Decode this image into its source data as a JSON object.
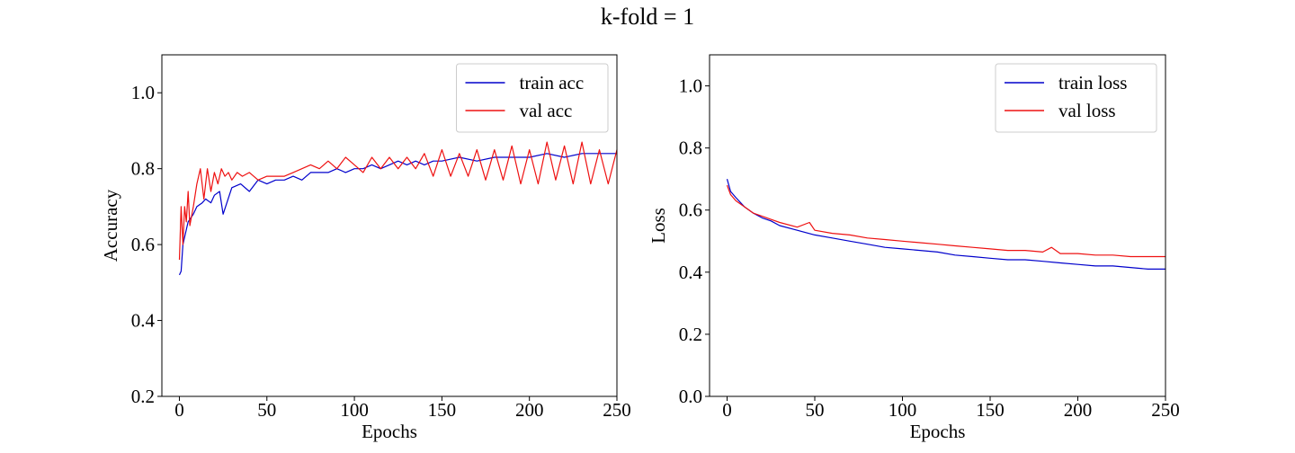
{
  "figure": {
    "suptitle": "k-fold = 1"
  },
  "chart_data": [
    {
      "type": "line",
      "title": "",
      "xlabel": "Epochs",
      "ylabel": "Accuracy",
      "xlim": [
        -10,
        250
      ],
      "ylim": [
        0.2,
        1.1
      ],
      "xticks": [
        0,
        50,
        100,
        150,
        200,
        250
      ],
      "xtick_labels": [
        "0",
        "50",
        "100",
        "150",
        "200",
        "250"
      ],
      "yticks": [
        0.2,
        0.4,
        0.6,
        0.8,
        1.0
      ],
      "ytick_labels": [
        "0.2",
        "0.4",
        "0.6",
        "0.8",
        "1.0"
      ],
      "grid": false,
      "legend_position": "top-right",
      "series": [
        {
          "name": "train acc",
          "color": "#0000cc",
          "x": [
            0,
            1,
            2,
            3,
            5,
            8,
            10,
            13,
            15,
            18,
            20,
            23,
            25,
            30,
            35,
            40,
            45,
            50,
            55,
            60,
            65,
            70,
            75,
            80,
            85,
            90,
            95,
            100,
            105,
            110,
            115,
            120,
            125,
            130,
            135,
            140,
            145,
            150,
            160,
            170,
            180,
            190,
            200,
            210,
            220,
            230,
            240,
            250
          ],
          "y": [
            0.52,
            0.53,
            0.6,
            0.62,
            0.66,
            0.68,
            0.7,
            0.71,
            0.72,
            0.71,
            0.73,
            0.74,
            0.68,
            0.75,
            0.76,
            0.74,
            0.77,
            0.76,
            0.77,
            0.77,
            0.78,
            0.77,
            0.79,
            0.79,
            0.79,
            0.8,
            0.79,
            0.8,
            0.8,
            0.81,
            0.8,
            0.81,
            0.82,
            0.81,
            0.82,
            0.81,
            0.82,
            0.82,
            0.83,
            0.82,
            0.83,
            0.83,
            0.83,
            0.84,
            0.83,
            0.84,
            0.84,
            0.84
          ]
        },
        {
          "name": "val acc",
          "color": "#ee1111",
          "x": [
            0,
            1,
            2,
            3,
            4,
            5,
            6,
            8,
            10,
            12,
            14,
            16,
            18,
            20,
            22,
            24,
            26,
            28,
            30,
            33,
            36,
            40,
            45,
            50,
            55,
            60,
            65,
            70,
            75,
            80,
            85,
            90,
            95,
            100,
            105,
            110,
            115,
            120,
            125,
            130,
            135,
            140,
            145,
            150,
            155,
            160,
            165,
            170,
            175,
            180,
            185,
            190,
            195,
            200,
            205,
            210,
            215,
            220,
            225,
            230,
            235,
            240,
            245,
            250
          ],
          "y": [
            0.56,
            0.7,
            0.6,
            0.7,
            0.66,
            0.74,
            0.65,
            0.7,
            0.76,
            0.8,
            0.72,
            0.8,
            0.74,
            0.79,
            0.76,
            0.8,
            0.78,
            0.79,
            0.77,
            0.79,
            0.78,
            0.79,
            0.77,
            0.78,
            0.78,
            0.78,
            0.79,
            0.8,
            0.81,
            0.8,
            0.82,
            0.8,
            0.83,
            0.81,
            0.79,
            0.83,
            0.8,
            0.83,
            0.8,
            0.83,
            0.8,
            0.84,
            0.78,
            0.85,
            0.78,
            0.84,
            0.78,
            0.85,
            0.77,
            0.85,
            0.77,
            0.86,
            0.76,
            0.85,
            0.76,
            0.87,
            0.77,
            0.86,
            0.76,
            0.87,
            0.76,
            0.85,
            0.76,
            0.85
          ]
        }
      ]
    },
    {
      "type": "line",
      "title": "",
      "xlabel": "Epochs",
      "ylabel": "Loss",
      "xlim": [
        -10,
        250
      ],
      "ylim": [
        0.0,
        1.1
      ],
      "xticks": [
        0,
        50,
        100,
        150,
        200,
        250
      ],
      "xtick_labels": [
        "0",
        "50",
        "100",
        "150",
        "200",
        "250"
      ],
      "yticks": [
        0.0,
        0.2,
        0.4,
        0.6,
        0.8,
        1.0
      ],
      "ytick_labels": [
        "0.0",
        "0.2",
        "0.4",
        "0.6",
        "0.8",
        "1.0"
      ],
      "grid": false,
      "legend_position": "top-right",
      "series": [
        {
          "name": "train loss",
          "color": "#0000cc",
          "x": [
            0,
            2,
            5,
            10,
            15,
            20,
            25,
            30,
            40,
            50,
            60,
            70,
            80,
            90,
            100,
            110,
            120,
            130,
            140,
            150,
            160,
            170,
            180,
            190,
            200,
            210,
            220,
            230,
            240,
            250
          ],
          "y": [
            0.7,
            0.66,
            0.64,
            0.61,
            0.59,
            0.575,
            0.565,
            0.55,
            0.535,
            0.52,
            0.51,
            0.5,
            0.49,
            0.48,
            0.475,
            0.47,
            0.465,
            0.455,
            0.45,
            0.445,
            0.44,
            0.44,
            0.435,
            0.43,
            0.425,
            0.42,
            0.42,
            0.415,
            0.41,
            0.41
          ]
        },
        {
          "name": "val loss",
          "color": "#ee1111",
          "x": [
            0,
            2,
            5,
            10,
            15,
            20,
            25,
            30,
            40,
            47,
            50,
            60,
            70,
            80,
            90,
            100,
            110,
            120,
            130,
            140,
            150,
            160,
            170,
            180,
            185,
            190,
            200,
            210,
            220,
            230,
            240,
            250
          ],
          "y": [
            0.68,
            0.65,
            0.63,
            0.61,
            0.59,
            0.58,
            0.57,
            0.56,
            0.545,
            0.56,
            0.535,
            0.525,
            0.52,
            0.51,
            0.505,
            0.5,
            0.495,
            0.49,
            0.485,
            0.48,
            0.475,
            0.47,
            0.47,
            0.465,
            0.48,
            0.46,
            0.46,
            0.455,
            0.455,
            0.45,
            0.45,
            0.45
          ]
        }
      ]
    }
  ]
}
